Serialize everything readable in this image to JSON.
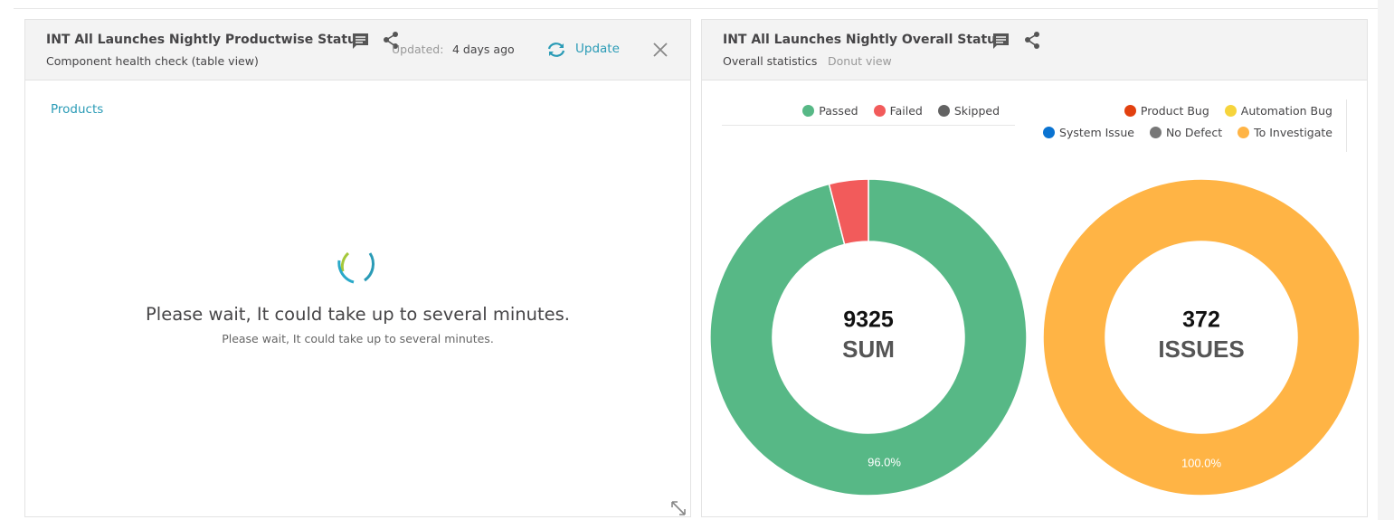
{
  "left_widget": {
    "title": "INT All Launches Nightly Productwise Status",
    "subtitle": "Component health check (table view)",
    "updated_label": "Updated:",
    "updated_value": "4 days ago",
    "update_button": "Update",
    "link": "Products",
    "loading_title": "Please wait, It could take up to several minutes.",
    "loading_subtitle": "Please wait, It could take up to several minutes."
  },
  "right_widget": {
    "title": "INT All Launches Nightly Overall Status",
    "subtitle": "Overall statistics",
    "view": "Donut view"
  },
  "chart_data": [
    {
      "type": "donut",
      "categories": [
        "Passed",
        "Failed",
        "Skipped"
      ],
      "values": [
        96.0,
        4.0,
        0
      ],
      "value_labels": [
        "96.0%",
        null,
        null
      ],
      "colors": [
        "#57b886",
        "#f25b5b",
        "#636363"
      ],
      "total": 9325,
      "total_label": "SUM"
    },
    {
      "type": "donut",
      "categories": [
        "Product Bug",
        "Automation Bug",
        "System Issue",
        "No Defect",
        "To Investigate"
      ],
      "values": [
        0,
        0,
        0,
        0,
        100.0
      ],
      "value_labels": [
        null,
        null,
        null,
        null,
        "100.0%"
      ],
      "colors": [
        "#e2400f",
        "#f6d43c",
        "#0a73d1",
        "#777777",
        "#ffb445"
      ],
      "total": 372,
      "total_label": "ISSUES"
    }
  ]
}
